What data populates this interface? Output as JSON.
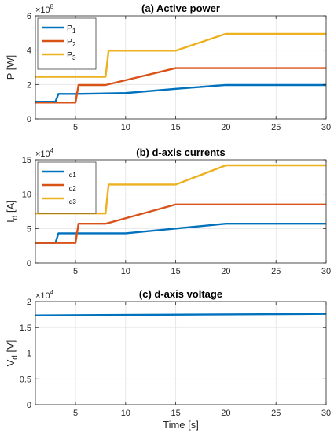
{
  "chart_data": [
    {
      "type": "line",
      "title": "(a) Active power",
      "ylabel": "P [W]",
      "xlabel": "",
      "exponent": "8",
      "xlim": [
        1,
        30
      ],
      "ylim": [
        0,
        6
      ],
      "yticks": [
        0,
        2,
        4,
        6
      ],
      "xticks": [
        5,
        10,
        15,
        20,
        25,
        30
      ],
      "grid": true,
      "legend_position": "top-left",
      "series": [
        {
          "name": "P",
          "sub": "1",
          "color": "#0072BD",
          "x": [
            1,
            3,
            3.3,
            5,
            10,
            15,
            20,
            30
          ],
          "y": [
            1.0,
            1.0,
            1.45,
            1.45,
            1.5,
            1.75,
            1.97,
            1.97
          ]
        },
        {
          "name": "P",
          "sub": "2",
          "color": "#D95319",
          "x": [
            1,
            5,
            5.3,
            8,
            15,
            20,
            30
          ],
          "y": [
            0.95,
            0.95,
            1.97,
            1.97,
            2.95,
            2.95,
            2.95
          ]
        },
        {
          "name": "P",
          "sub": "3",
          "color": "#EDB120",
          "x": [
            1,
            8,
            8.3,
            15,
            20,
            30
          ],
          "y": [
            2.45,
            2.45,
            3.97,
            3.97,
            4.95,
            4.95
          ]
        }
      ]
    },
    {
      "type": "line",
      "title": "(b) d-axis currents",
      "ylabel": "I",
      "ylabel_sub": "d",
      "ylabel_unit": " [A]",
      "xlabel": "",
      "exponent": "4",
      "xlim": [
        1,
        30
      ],
      "ylim": [
        0,
        15
      ],
      "yticks": [
        0,
        5,
        10,
        15
      ],
      "xticks": [
        5,
        10,
        15,
        20,
        25,
        30
      ],
      "grid": true,
      "legend_position": "top-left",
      "series": [
        {
          "name": "I",
          "sub": "d1",
          "color": "#0072BD",
          "x": [
            1,
            3,
            3.3,
            5,
            5.3,
            10,
            15,
            20,
            30
          ],
          "y": [
            2.9,
            2.9,
            4.3,
            4.3,
            4.3,
            4.3,
            5.0,
            5.7,
            5.7
          ]
        },
        {
          "name": "I",
          "sub": "d2",
          "color": "#D95319",
          "x": [
            1,
            5,
            5.3,
            8,
            15,
            20,
            30
          ],
          "y": [
            2.9,
            2.9,
            5.7,
            5.7,
            8.5,
            8.5,
            8.5
          ]
        },
        {
          "name": "I",
          "sub": "d3",
          "color": "#EDB120",
          "x": [
            1,
            8,
            8.3,
            15,
            20,
            30
          ],
          "y": [
            7.2,
            7.2,
            11.4,
            11.4,
            14.2,
            14.2
          ]
        }
      ]
    },
    {
      "type": "line",
      "title": "(c) d-axis voltage",
      "ylabel": "V",
      "ylabel_sub": "d",
      "ylabel_unit": " [V]",
      "xlabel": "Time [s]",
      "exponent": "4",
      "xlim": [
        1,
        30
      ],
      "ylim": [
        0,
        2
      ],
      "yticks": [
        0,
        0.5,
        1,
        1.5,
        2
      ],
      "xticks": [
        5,
        10,
        15,
        20,
        25,
        30
      ],
      "grid": true,
      "series": [
        {
          "name": "",
          "color": "#0072BD",
          "x": [
            1,
            30
          ],
          "y": [
            1.73,
            1.76
          ]
        }
      ]
    }
  ]
}
